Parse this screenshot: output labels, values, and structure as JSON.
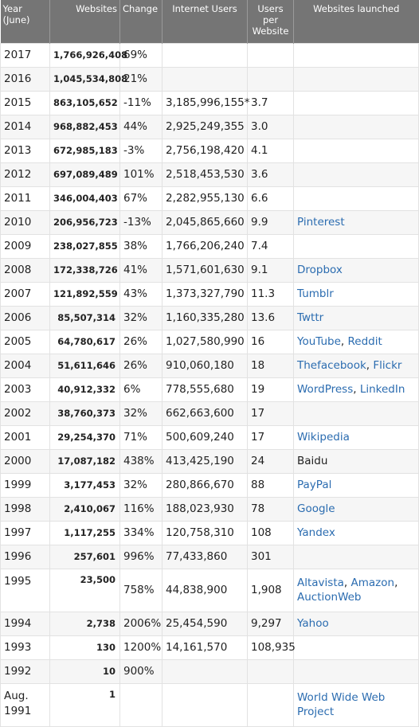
{
  "headers": {
    "year": "Year (June)",
    "websites": "Websites",
    "change": "Change",
    "internet_users": "Internet Users",
    "users_per_website": "Users per Website",
    "websites_launched": "Websites launched"
  },
  "rows": [
    {
      "year": "2017",
      "websites": "1,766,926,408",
      "change": "69%",
      "internet_users": "",
      "users_per_website": "",
      "launched": []
    },
    {
      "year": "2016",
      "websites": "1,045,534,808",
      "change": "21%",
      "internet_users": "",
      "users_per_website": "",
      "launched": []
    },
    {
      "year": "2015",
      "websites": "863,105,652",
      "change": "-11%",
      "internet_users": "3,185,996,155*",
      "users_per_website": "3.7",
      "launched": []
    },
    {
      "year": "2014",
      "websites": "968,882,453",
      "change": "44%",
      "internet_users": "2,925,249,355",
      "users_per_website": "3.0",
      "launched": []
    },
    {
      "year": "2013",
      "websites": "672,985,183",
      "change": "-3%",
      "internet_users": "2,756,198,420",
      "users_per_website": "4.1",
      "launched": []
    },
    {
      "year": "2012",
      "websites": "697,089,489",
      "change": "101%",
      "internet_users": "2,518,453,530",
      "users_per_website": "3.6",
      "launched": []
    },
    {
      "year": "2011",
      "websites": "346,004,403",
      "change": "67%",
      "internet_users": "2,282,955,130",
      "users_per_website": "6.6",
      "launched": []
    },
    {
      "year": "2010",
      "websites": "206,956,723",
      "change": "-13%",
      "internet_users": "2,045,865,660",
      "users_per_website": "9.9",
      "launched": [
        "Pinterest"
      ]
    },
    {
      "year": "2009",
      "websites": "238,027,855",
      "change": "38%",
      "internet_users": "1,766,206,240",
      "users_per_website": "7.4",
      "launched": []
    },
    {
      "year": "2008",
      "websites": "172,338,726",
      "change": "41%",
      "internet_users": "1,571,601,630",
      "users_per_website": "9.1",
      "launched": [
        "Dropbox"
      ]
    },
    {
      "year": "2007",
      "websites": "121,892,559",
      "change": "43%",
      "internet_users": "1,373,327,790",
      "users_per_website": "11.3",
      "launched": [
        "Tumblr"
      ]
    },
    {
      "year": "2006",
      "websites": "85,507,314",
      "change": "32%",
      "internet_users": "1,160,335,280",
      "users_per_website": "13.6",
      "launched": [
        "Twttr"
      ]
    },
    {
      "year": "2005",
      "websites": "64,780,617",
      "change": "26%",
      "internet_users": "1,027,580,990",
      "users_per_website": "16",
      "launched": [
        "YouTube",
        "Reddit"
      ]
    },
    {
      "year": "2004",
      "websites": "51,611,646",
      "change": "26%",
      "internet_users": "910,060,180",
      "users_per_website": "18",
      "launched": [
        "Thefacebook",
        "Flickr"
      ]
    },
    {
      "year": "2003",
      "websites": "40,912,332",
      "change": "6%",
      "internet_users": "778,555,680",
      "users_per_website": "19",
      "launched": [
        "WordPress",
        "LinkedIn"
      ]
    },
    {
      "year": "2002",
      "websites": "38,760,373",
      "change": "32%",
      "internet_users": "662,663,600",
      "users_per_website": "17",
      "launched": []
    },
    {
      "year": "2001",
      "websites": "29,254,370",
      "change": "71%",
      "internet_users": "500,609,240",
      "users_per_website": "17",
      "launched": [
        "Wikipedia"
      ]
    },
    {
      "year": "2000",
      "websites": "17,087,182",
      "change": "438%",
      "internet_users": "413,425,190",
      "users_per_website": "24",
      "launched": [
        "Baidu"
      ],
      "launched_plain": true
    },
    {
      "year": "1999",
      "websites": "3,177,453",
      "change": "32%",
      "internet_users": "280,866,670",
      "users_per_website": "88",
      "launched": [
        "PayPal"
      ]
    },
    {
      "year": "1998",
      "websites": "2,410,067",
      "change": "116%",
      "internet_users": "188,023,930",
      "users_per_website": "78",
      "launched": [
        "Google"
      ]
    },
    {
      "year": "1997",
      "websites": "1,117,255",
      "change": "334%",
      "internet_users": "120,758,310",
      "users_per_website": "108",
      "launched": [
        "Yandex"
      ]
    },
    {
      "year": "1996",
      "websites": "257,601",
      "change": "996%",
      "internet_users": "77,433,860",
      "users_per_website": "301",
      "launched": []
    },
    {
      "year": "1995",
      "websites": "23,500",
      "change": "758%",
      "internet_users": "44,838,900",
      "users_per_website": "1,908",
      "launched": [
        "Altavista",
        "Amazon",
        "AuctionWeb"
      ],
      "tall": true
    },
    {
      "year": "1994",
      "websites": "2,738",
      "change": "2006%",
      "internet_users": "25,454,590",
      "users_per_website": "9,297",
      "launched": [
        "Yahoo"
      ]
    },
    {
      "year": "1993",
      "websites": "130",
      "change": "1200%",
      "internet_users": "14,161,570",
      "users_per_website": "108,935",
      "launched": []
    },
    {
      "year": "1992",
      "websites": "10",
      "change": "900%",
      "internet_users": "",
      "users_per_website": "",
      "launched": []
    },
    {
      "year": "Aug. 1991",
      "websites": "1",
      "change": "",
      "internet_users": "",
      "users_per_website": "",
      "launched": [
        "World Wide Web Project"
      ],
      "tall": true
    }
  ],
  "colors": {
    "header_bg": "#757575",
    "header_text": "#ffffff",
    "link": "#2b6cb0",
    "row_alt": "#f6f6f6",
    "border": "#e2e2e2"
  }
}
